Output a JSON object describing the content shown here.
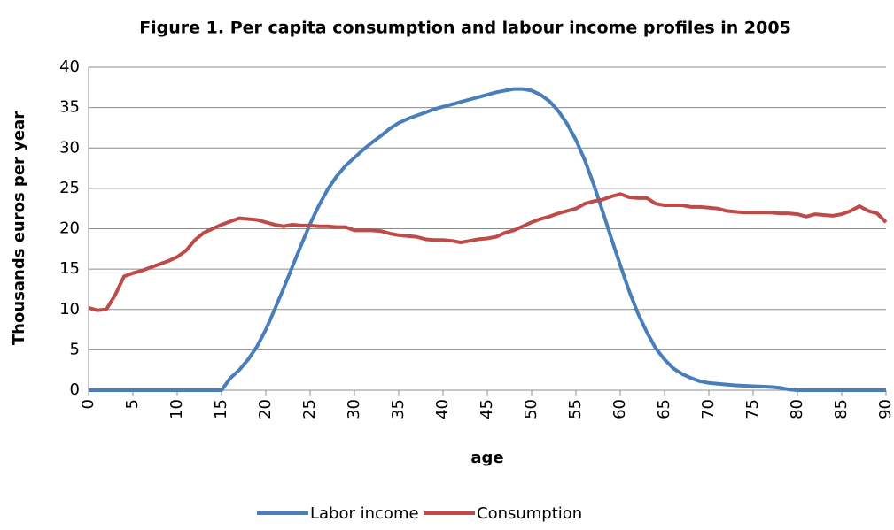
{
  "chart_data": {
    "type": "line",
    "title": "Figure 1. Per capita consumption and labour income profiles in 2005",
    "xlabel": "age",
    "ylabel": "Thousands euros per year",
    "x": [
      0,
      1,
      2,
      3,
      4,
      5,
      6,
      7,
      8,
      9,
      10,
      11,
      12,
      13,
      14,
      15,
      16,
      17,
      18,
      19,
      20,
      21,
      22,
      23,
      24,
      25,
      26,
      27,
      28,
      29,
      30,
      31,
      32,
      33,
      34,
      35,
      36,
      37,
      38,
      39,
      40,
      41,
      42,
      43,
      44,
      45,
      46,
      47,
      48,
      49,
      50,
      51,
      52,
      53,
      54,
      55,
      56,
      57,
      58,
      59,
      60,
      61,
      62,
      63,
      64,
      65,
      66,
      67,
      68,
      69,
      70,
      71,
      72,
      73,
      74,
      75,
      76,
      77,
      78,
      79,
      80,
      81,
      82,
      83,
      84,
      85,
      86,
      87,
      88,
      89,
      90
    ],
    "series": [
      {
        "name": "Labor income",
        "color": "#4a7ebb",
        "values": [
          0,
          0,
          0,
          0,
          0,
          0,
          0,
          0,
          0,
          0,
          0,
          0,
          0,
          0,
          0,
          0,
          1.5,
          2.5,
          3.8,
          5.4,
          7.5,
          10,
          12.6,
          15.3,
          18,
          20.6,
          22.9,
          24.9,
          26.5,
          27.8,
          28.8,
          29.8,
          30.7,
          31.5,
          32.4,
          33.1,
          33.6,
          34,
          34.4,
          34.8,
          35.1,
          35.4,
          35.7,
          36,
          36.3,
          36.6,
          36.9,
          37.1,
          37.3,
          37.3,
          37.1,
          36.6,
          35.8,
          34.6,
          33,
          31,
          28.5,
          25.5,
          22.2,
          18.8,
          15.5,
          12.3,
          9.5,
          7.2,
          5.2,
          3.8,
          2.7,
          2,
          1.5,
          1.1,
          0.9,
          0.8,
          0.7,
          0.6,
          0.55,
          0.5,
          0.45,
          0.4,
          0.3,
          0.1,
          0,
          0,
          0,
          0,
          0,
          0,
          0,
          0,
          0,
          0,
          0
        ]
      },
      {
        "name": "Consumption",
        "color": "#be4b48",
        "values": [
          10.2,
          9.9,
          10,
          11.8,
          14.1,
          14.5,
          14.8,
          15.2,
          15.6,
          16,
          16.5,
          17.3,
          18.6,
          19.5,
          20,
          20.5,
          20.9,
          21.3,
          21.2,
          21.1,
          20.8,
          20.5,
          20.3,
          20.5,
          20.4,
          20.4,
          20.3,
          20.3,
          20.2,
          20.2,
          19.8,
          19.8,
          19.8,
          19.7,
          19.4,
          19.2,
          19.1,
          19,
          18.7,
          18.6,
          18.6,
          18.5,
          18.3,
          18.5,
          18.7,
          18.8,
          19,
          19.5,
          19.8,
          20.3,
          20.8,
          21.2,
          21.5,
          21.9,
          22.2,
          22.5,
          23.1,
          23.4,
          23.6,
          24,
          24.3,
          23.9,
          23.8,
          23.8,
          23.1,
          22.9,
          22.9,
          22.9,
          22.7,
          22.7,
          22.6,
          22.5,
          22.2,
          22.1,
          22,
          22,
          22,
          22,
          21.9,
          21.9,
          21.8,
          21.5,
          21.8,
          21.7,
          21.6,
          21.8,
          22.2,
          22.8,
          22.2,
          21.9,
          20.8
        ]
      }
    ],
    "xlim": [
      0,
      90
    ],
    "xticks": [
      0,
      5,
      10,
      15,
      20,
      25,
      30,
      35,
      40,
      45,
      50,
      55,
      60,
      65,
      70,
      75,
      80,
      85,
      90
    ],
    "ylim": [
      0,
      40
    ],
    "yticks": [
      0,
      5,
      10,
      15,
      20,
      25,
      30,
      35,
      40
    ],
    "grid": true,
    "legend": "bottom"
  }
}
